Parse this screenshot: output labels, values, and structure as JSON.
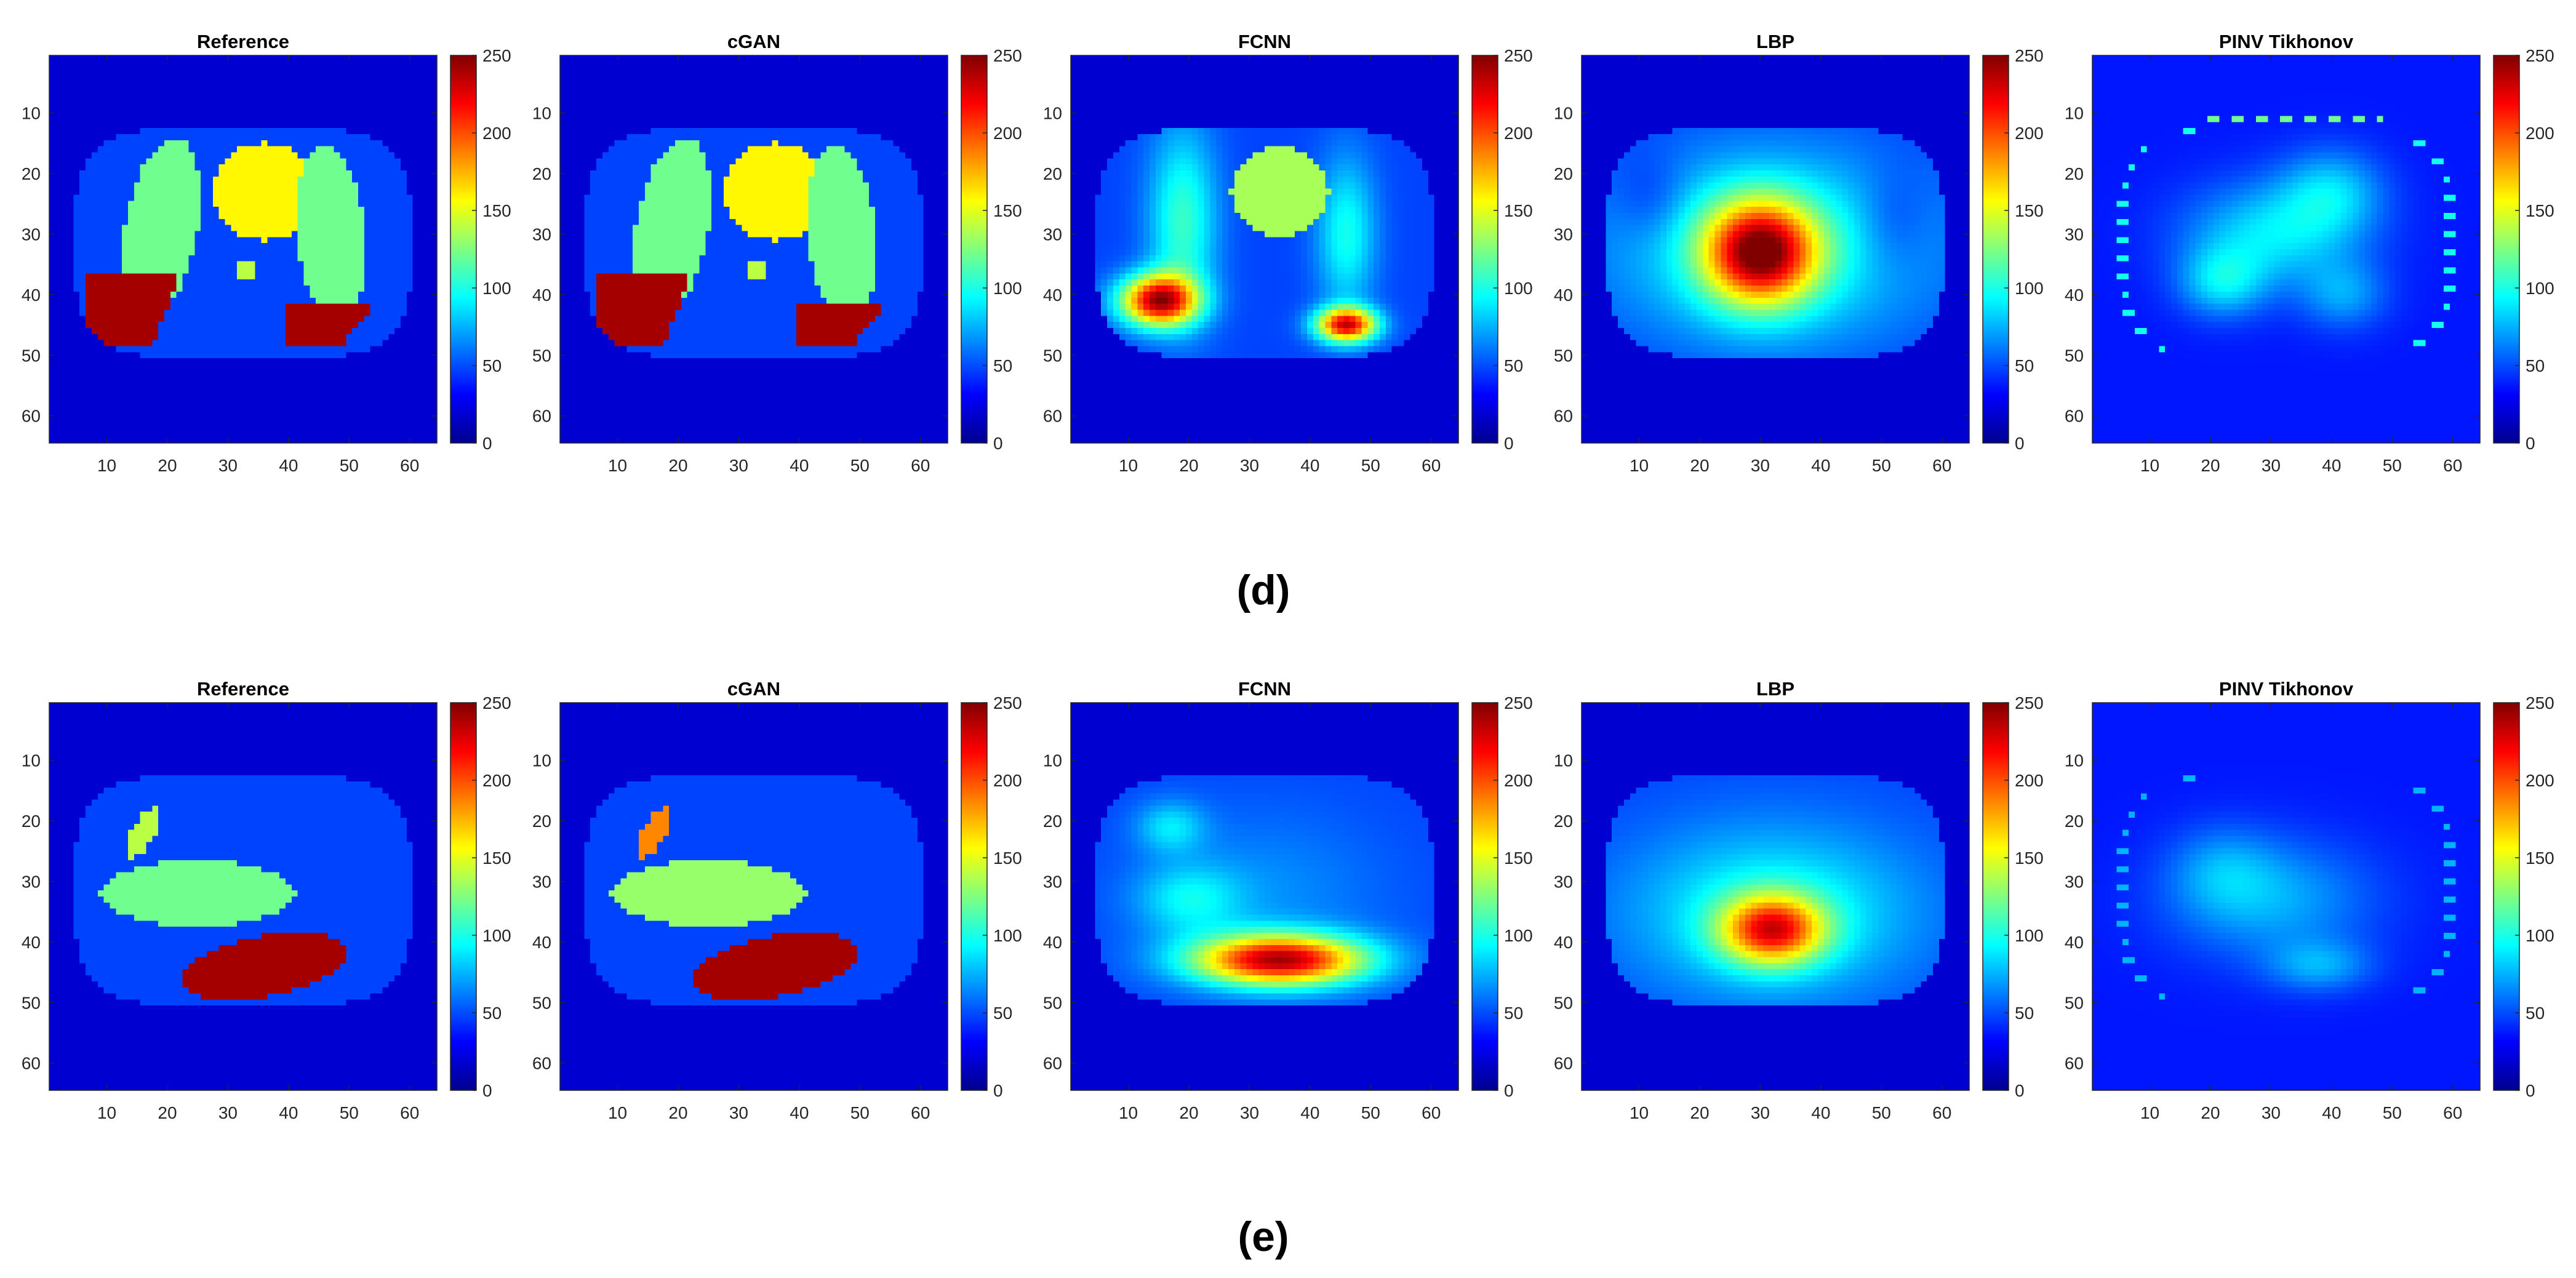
{
  "rows": [
    {
      "label": "(d)",
      "panels": [
        {
          "title": "Reference",
          "phantom": "d_ref"
        },
        {
          "title": "cGAN",
          "phantom": "d_cgan"
        },
        {
          "title": "FCNN",
          "phantom": "d_fcnn"
        },
        {
          "title": "LBP",
          "phantom": "d_lbp"
        },
        {
          "title": "PINV Tikhonov",
          "phantom": "d_pinv"
        }
      ]
    },
    {
      "label": "(e)",
      "panels": [
        {
          "title": "Reference",
          "phantom": "e_ref"
        },
        {
          "title": "cGAN",
          "phantom": "e_cgan"
        },
        {
          "title": "FCNN",
          "phantom": "e_fcnn"
        },
        {
          "title": "LBP",
          "phantom": "e_lbp"
        },
        {
          "title": "PINV Tikhonov",
          "phantom": "e_pinv"
        }
      ]
    }
  ],
  "chart_data": {
    "type": "heatmap",
    "colormap": "jet",
    "grid_size": [
      64,
      64
    ],
    "x_ticks": [
      10,
      20,
      30,
      40,
      50,
      60
    ],
    "y_ticks": [
      10,
      20,
      30,
      40,
      50,
      60
    ],
    "colorbar": {
      "range": [
        0,
        250
      ],
      "ticks": [
        0,
        50,
        100,
        150,
        200,
        250
      ]
    }
  }
}
